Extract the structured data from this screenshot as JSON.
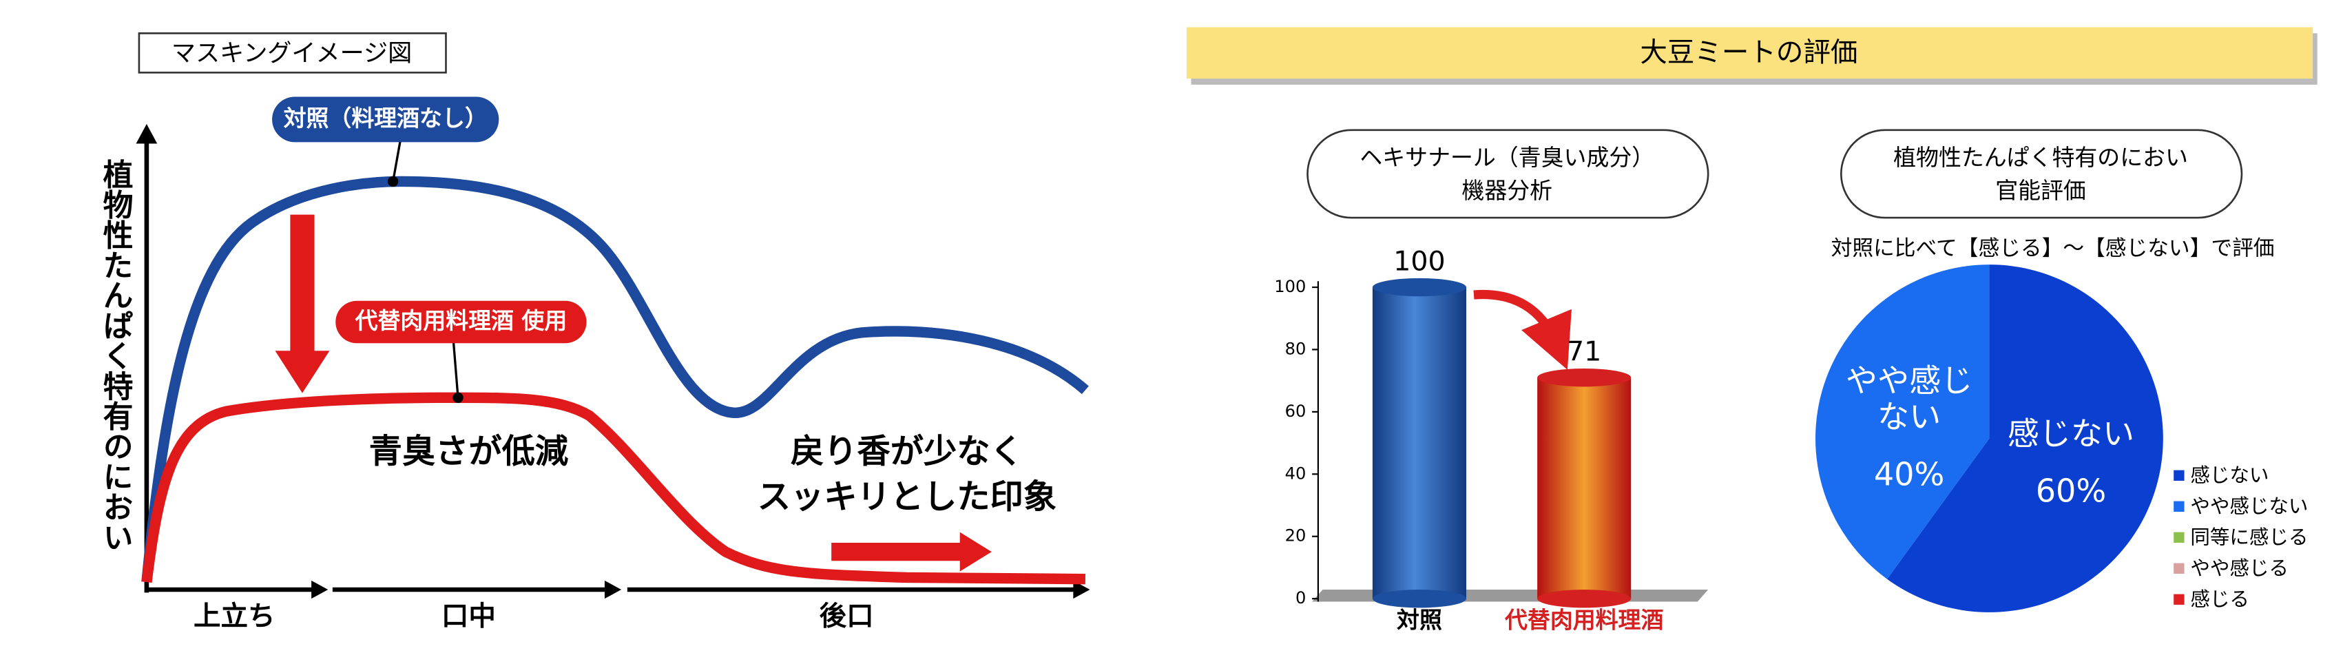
{
  "header": {
    "title": "大豆ミートの評価"
  },
  "diagram": {
    "title": "マスキングイメージ図",
    "y_axis_label": "植物性たんぱく特有のにおい",
    "x_phases": [
      "上立ち",
      "口中",
      "後口"
    ],
    "control_label": "対照（料理酒なし）",
    "test_label": "代替肉用料理酒 使用",
    "note1": "青臭さが低減",
    "note2": [
      "戻り香が少なく",
      "スッキリとした印象"
    ]
  },
  "chart_data": [
    {
      "type": "bar",
      "title": "ヘキサナール（青臭い成分）",
      "subtitle": "機器分析",
      "categories": [
        "対照",
        "代替肉用料理酒"
      ],
      "values": [
        100,
        71
      ],
      "colors": [
        "#1d4fa0",
        "#d42020"
      ],
      "ylim": [
        0,
        100
      ],
      "yticks": [
        0,
        20,
        40,
        60,
        80,
        100
      ]
    },
    {
      "type": "pie",
      "title": "植物性たんぱく特有のにおい",
      "subtitle": "官能評価",
      "note": "対照に比べて【感じる】～【感じない】で評価",
      "categories": [
        "感じない",
        "やや感じない",
        "同等に感じる",
        "やや感じる",
        "感じる"
      ],
      "values": [
        60,
        40,
        0,
        0,
        0
      ],
      "value_labels": [
        "60%",
        "40%",
        null,
        null,
        null
      ],
      "colors": [
        "#0b3fcf",
        "#1a6cf0",
        "#8cbf4c",
        "#d9a0a0",
        "#e02020"
      ],
      "legend": "right"
    }
  ]
}
